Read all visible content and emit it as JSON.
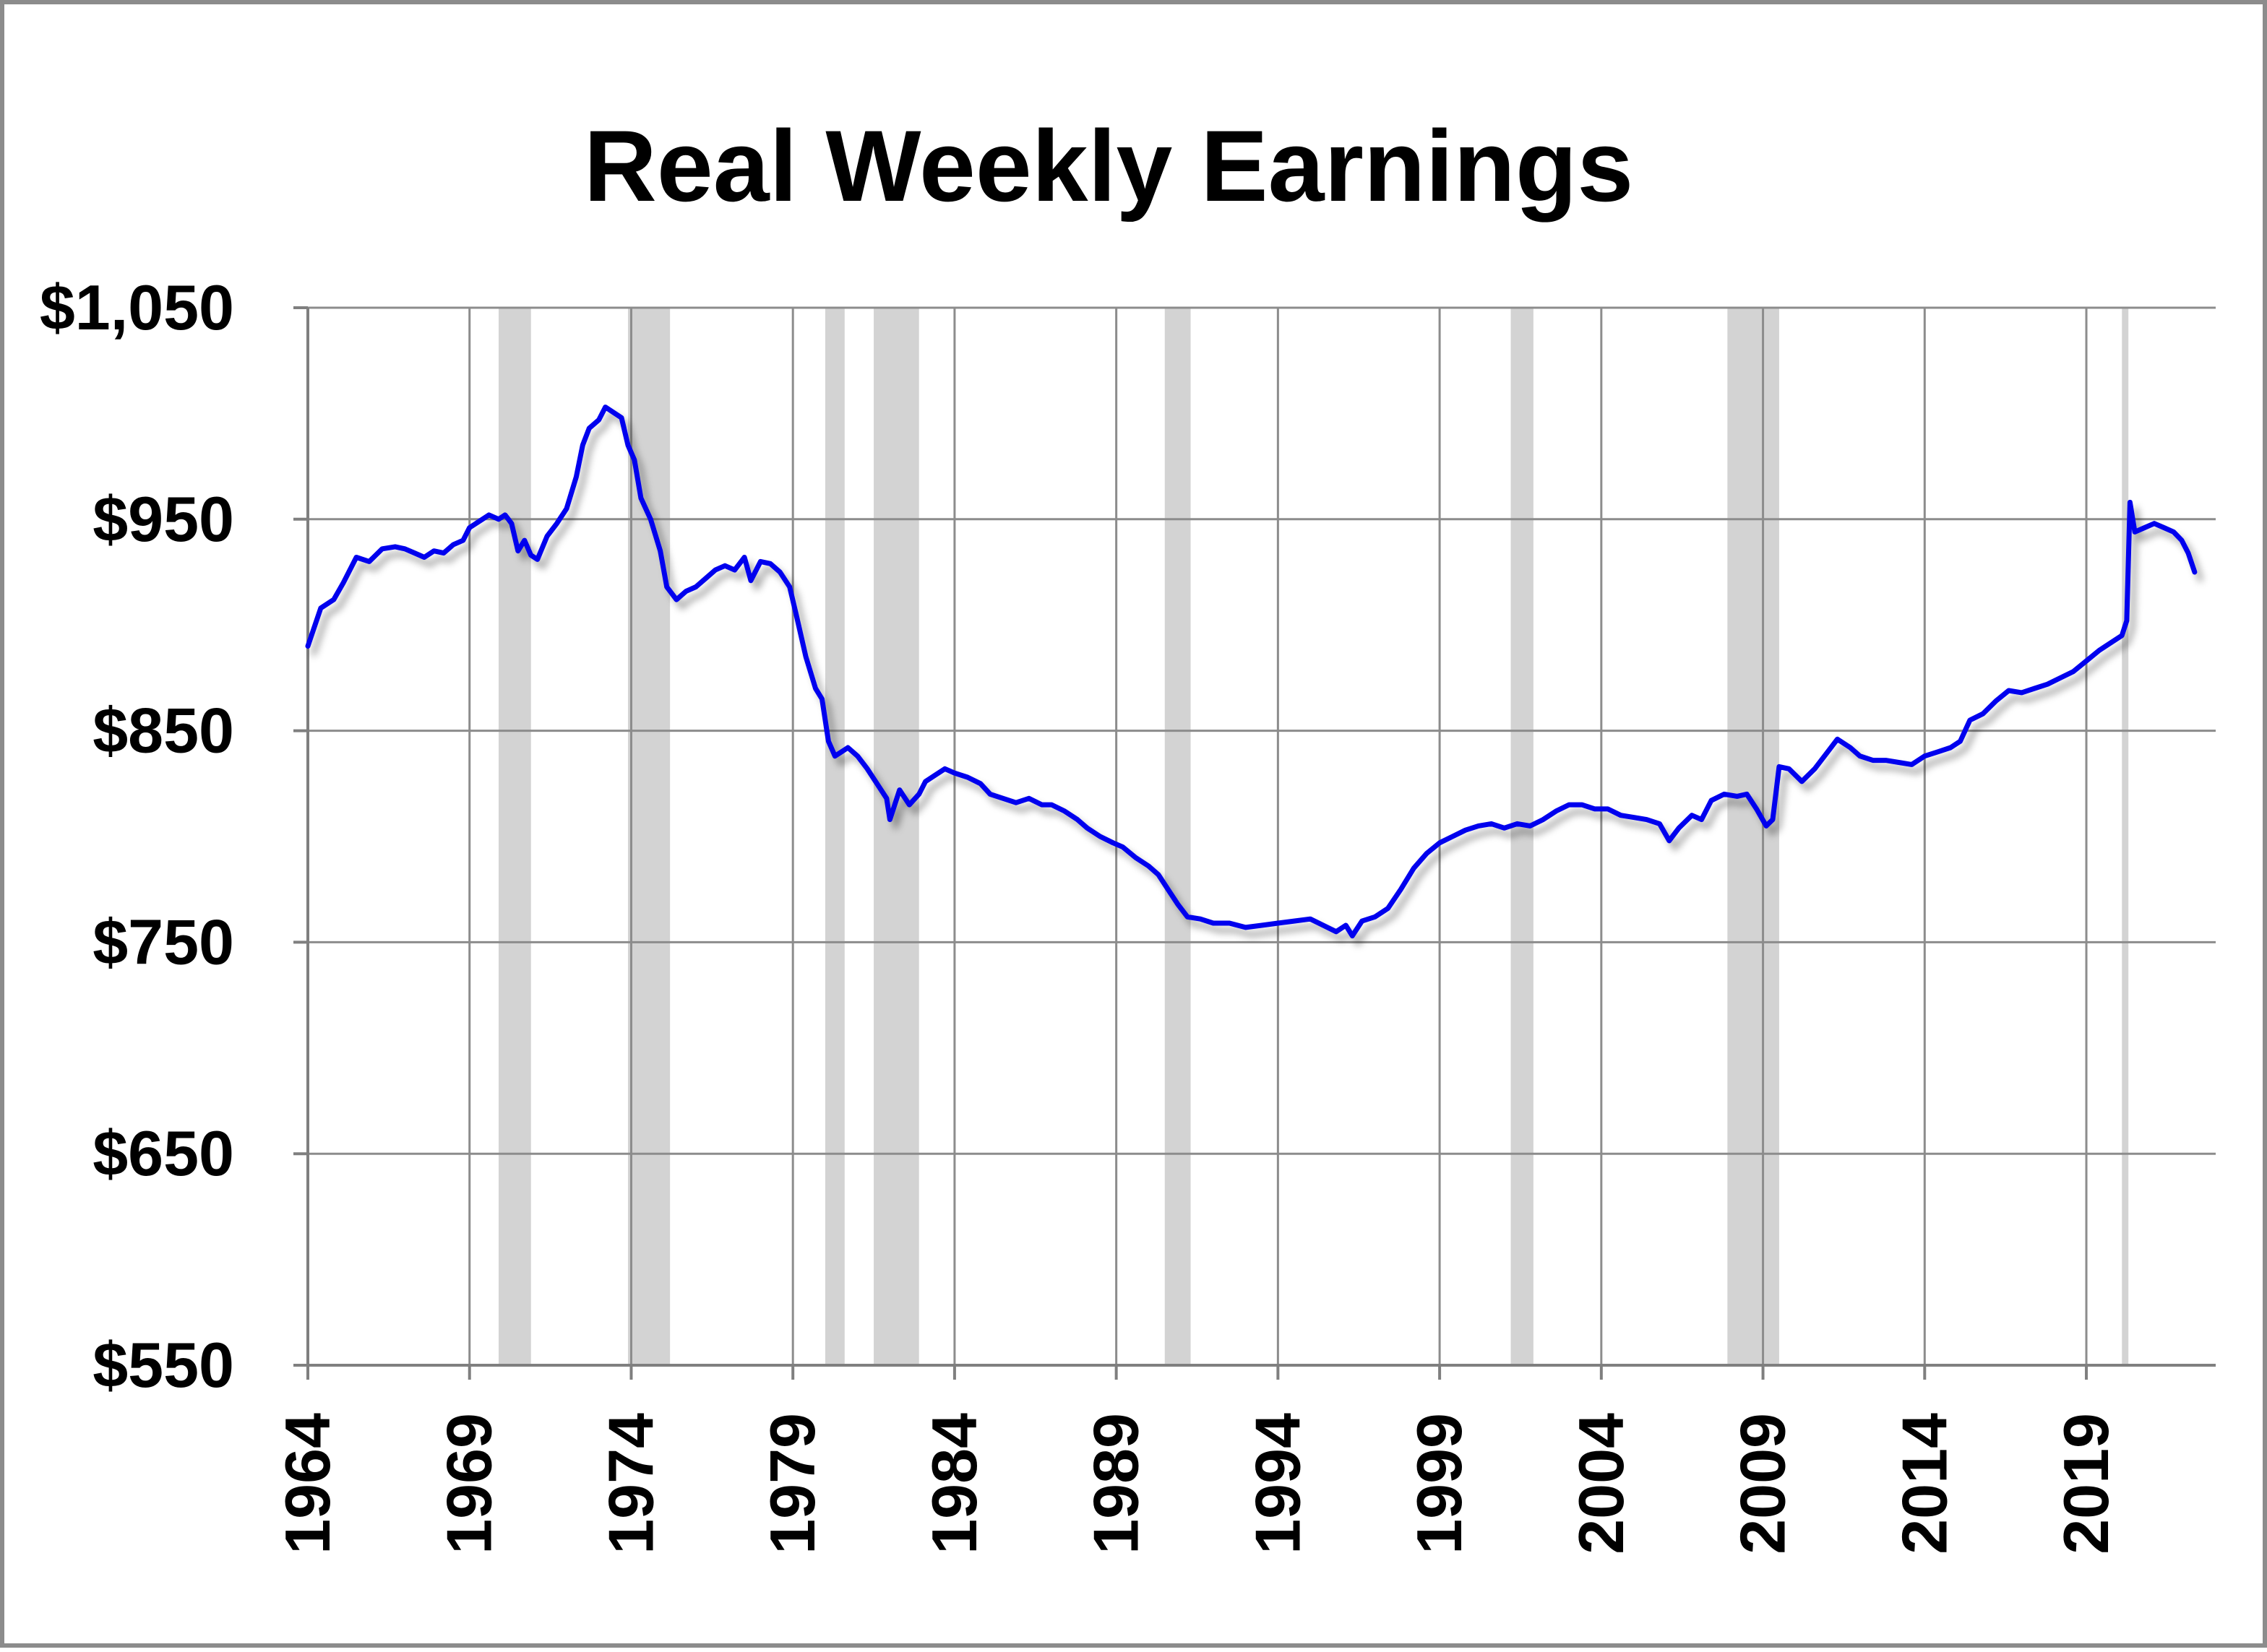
{
  "chart_data": {
    "type": "line",
    "title": "Real Weekly Earnings",
    "xlabel": "",
    "ylabel": "",
    "xlim": [
      1964,
      2023
    ],
    "ylim": [
      550,
      1050
    ],
    "y_ticks": [
      {
        "value": 550,
        "label": "$550"
      },
      {
        "value": 650,
        "label": "$650"
      },
      {
        "value": 750,
        "label": "$750"
      },
      {
        "value": 850,
        "label": "$850"
      },
      {
        "value": 950,
        "label": "$950"
      },
      {
        "value": 1050,
        "label": "$1,050"
      }
    ],
    "x_ticks": [
      {
        "value": 1964,
        "label": "1964"
      },
      {
        "value": 1969,
        "label": "1969"
      },
      {
        "value": 1974,
        "label": "1974"
      },
      {
        "value": 1979,
        "label": "1979"
      },
      {
        "value": 1984,
        "label": "1984"
      },
      {
        "value": 1989,
        "label": "1989"
      },
      {
        "value": 1994,
        "label": "1994"
      },
      {
        "value": 1999,
        "label": "1999"
      },
      {
        "value": 2004,
        "label": "2004"
      },
      {
        "value": 2009,
        "label": "2009"
      },
      {
        "value": 2014,
        "label": "2014"
      },
      {
        "value": 2019,
        "label": "2019"
      }
    ],
    "grid": true,
    "legend": "none",
    "recession_shading": [
      [
        1969.9,
        1970.9
      ],
      [
        1973.9,
        1975.2
      ],
      [
        1980.0,
        1980.6
      ],
      [
        1981.5,
        1982.9
      ],
      [
        1990.5,
        1991.3
      ],
      [
        2001.2,
        2001.9
      ],
      [
        2007.9,
        2009.5
      ],
      [
        2020.1,
        2020.3
      ]
    ],
    "series": [
      {
        "color": "#0000ee",
        "points": [
          [
            1964.0,
            890
          ],
          [
            1964.4,
            908
          ],
          [
            1964.8,
            912
          ],
          [
            1965.1,
            920
          ],
          [
            1965.5,
            932
          ],
          [
            1965.9,
            930
          ],
          [
            1966.3,
            936
          ],
          [
            1966.7,
            937
          ],
          [
            1967.0,
            936
          ],
          [
            1967.3,
            934
          ],
          [
            1967.6,
            932
          ],
          [
            1967.9,
            935
          ],
          [
            1968.2,
            934
          ],
          [
            1968.5,
            938
          ],
          [
            1968.8,
            940
          ],
          [
            1969.0,
            946
          ],
          [
            1969.3,
            949
          ],
          [
            1969.6,
            952
          ],
          [
            1969.9,
            950
          ],
          [
            1970.1,
            952
          ],
          [
            1970.3,
            948
          ],
          [
            1970.5,
            935
          ],
          [
            1970.7,
            940
          ],
          [
            1970.9,
            933
          ],
          [
            1971.1,
            931
          ],
          [
            1971.4,
            942
          ],
          [
            1971.7,
            948
          ],
          [
            1972.0,
            955
          ],
          [
            1972.3,
            970
          ],
          [
            1972.5,
            985
          ],
          [
            1972.7,
            993
          ],
          [
            1973.0,
            997
          ],
          [
            1973.2,
            1003
          ],
          [
            1973.5,
            1000
          ],
          [
            1973.7,
            998
          ],
          [
            1973.9,
            985
          ],
          [
            1974.1,
            978
          ],
          [
            1974.3,
            960
          ],
          [
            1974.6,
            950
          ],
          [
            1974.9,
            935
          ],
          [
            1975.1,
            918
          ],
          [
            1975.4,
            912
          ],
          [
            1975.7,
            916
          ],
          [
            1976.0,
            918
          ],
          [
            1976.3,
            922
          ],
          [
            1976.6,
            926
          ],
          [
            1976.9,
            928
          ],
          [
            1977.2,
            926
          ],
          [
            1977.5,
            932
          ],
          [
            1977.7,
            921
          ],
          [
            1978.0,
            930
          ],
          [
            1978.3,
            929
          ],
          [
            1978.6,
            925
          ],
          [
            1978.9,
            918
          ],
          [
            1979.1,
            905
          ],
          [
            1979.4,
            885
          ],
          [
            1979.7,
            870
          ],
          [
            1979.9,
            865
          ],
          [
            1980.1,
            845
          ],
          [
            1980.3,
            838
          ],
          [
            1980.5,
            840
          ],
          [
            1980.7,
            842
          ],
          [
            1981.0,
            838
          ],
          [
            1981.3,
            832
          ],
          [
            1981.6,
            825
          ],
          [
            1981.9,
            818
          ],
          [
            1982.0,
            808
          ],
          [
            1982.3,
            822
          ],
          [
            1982.6,
            815
          ],
          [
            1982.9,
            820
          ],
          [
            1983.1,
            826
          ],
          [
            1983.4,
            829
          ],
          [
            1983.7,
            832
          ],
          [
            1984.0,
            830
          ],
          [
            1984.4,
            828
          ],
          [
            1984.8,
            825
          ],
          [
            1985.1,
            820
          ],
          [
            1985.5,
            818
          ],
          [
            1985.9,
            816
          ],
          [
            1986.3,
            818
          ],
          [
            1986.7,
            815
          ],
          [
            1987.0,
            815
          ],
          [
            1987.4,
            812
          ],
          [
            1987.8,
            808
          ],
          [
            1988.1,
            804
          ],
          [
            1988.5,
            800
          ],
          [
            1988.9,
            797
          ],
          [
            1989.2,
            795
          ],
          [
            1989.6,
            790
          ],
          [
            1990.0,
            786
          ],
          [
            1990.3,
            782
          ],
          [
            1990.6,
            775
          ],
          [
            1990.9,
            768
          ],
          [
            1991.2,
            762
          ],
          [
            1991.6,
            761
          ],
          [
            1992.0,
            759
          ],
          [
            1992.5,
            759
          ],
          [
            1993.0,
            757
          ],
          [
            1993.5,
            758
          ],
          [
            1994.0,
            759
          ],
          [
            1994.5,
            760
          ],
          [
            1995.0,
            761
          ],
          [
            1995.4,
            758
          ],
          [
            1995.8,
            755
          ],
          [
            1996.1,
            758
          ],
          [
            1996.3,
            753
          ],
          [
            1996.6,
            760
          ],
          [
            1997.0,
            762
          ],
          [
            1997.4,
            766
          ],
          [
            1997.8,
            775
          ],
          [
            1998.2,
            785
          ],
          [
            1998.6,
            792
          ],
          [
            1999.0,
            797
          ],
          [
            1999.4,
            800
          ],
          [
            1999.8,
            803
          ],
          [
            2000.2,
            805
          ],
          [
            2000.6,
            806
          ],
          [
            2001.0,
            804
          ],
          [
            2001.4,
            806
          ],
          [
            2001.8,
            805
          ],
          [
            2002.2,
            808
          ],
          [
            2002.6,
            812
          ],
          [
            2003.0,
            815
          ],
          [
            2003.4,
            815
          ],
          [
            2003.8,
            813
          ],
          [
            2004.2,
            813
          ],
          [
            2004.6,
            810
          ],
          [
            2005.0,
            809
          ],
          [
            2005.4,
            808
          ],
          [
            2005.8,
            806
          ],
          [
            2006.1,
            798
          ],
          [
            2006.4,
            804
          ],
          [
            2006.8,
            810
          ],
          [
            2007.1,
            808
          ],
          [
            2007.4,
            817
          ],
          [
            2007.8,
            820
          ],
          [
            2008.2,
            819
          ],
          [
            2008.5,
            820
          ],
          [
            2008.8,
            813
          ],
          [
            2009.1,
            805
          ],
          [
            2009.3,
            808
          ],
          [
            2009.5,
            833
          ],
          [
            2009.8,
            832
          ],
          [
            2010.2,
            826
          ],
          [
            2010.6,
            832
          ],
          [
            2011.0,
            840
          ],
          [
            2011.3,
            846
          ],
          [
            2011.7,
            842
          ],
          [
            2012.0,
            838
          ],
          [
            2012.4,
            836
          ],
          [
            2012.8,
            836
          ],
          [
            2013.2,
            835
          ],
          [
            2013.6,
            834
          ],
          [
            2014.0,
            838
          ],
          [
            2014.4,
            840
          ],
          [
            2014.8,
            842
          ],
          [
            2015.1,
            845
          ],
          [
            2015.4,
            855
          ],
          [
            2015.8,
            858
          ],
          [
            2016.2,
            864
          ],
          [
            2016.6,
            869
          ],
          [
            2017.0,
            868
          ],
          [
            2017.4,
            870
          ],
          [
            2017.8,
            872
          ],
          [
            2018.2,
            875
          ],
          [
            2018.6,
            878
          ],
          [
            2019.0,
            883
          ],
          [
            2019.4,
            888
          ],
          [
            2019.8,
            892
          ],
          [
            2020.1,
            895
          ],
          [
            2020.25,
            902
          ],
          [
            2020.35,
            958
          ],
          [
            2020.5,
            944
          ],
          [
            2020.8,
            946
          ],
          [
            2021.1,
            948
          ],
          [
            2021.4,
            946
          ],
          [
            2021.7,
            944
          ],
          [
            2021.95,
            940
          ],
          [
            2022.15,
            934
          ],
          [
            2022.35,
            925
          ]
        ]
      }
    ]
  }
}
